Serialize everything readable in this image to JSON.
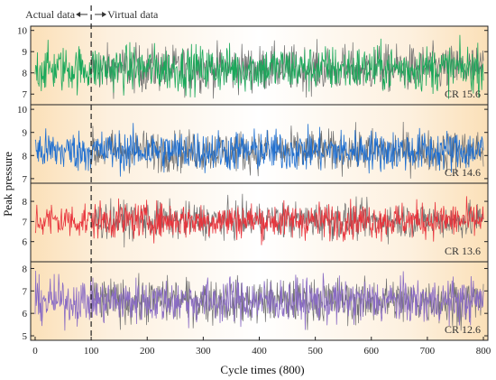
{
  "chart_data": {
    "type": "line",
    "xlabel": "Cycle times (800)",
    "ylabel": "Peak pressure",
    "xlim": [
      -8,
      808
    ],
    "xticks": [
      0,
      100,
      200,
      300,
      400,
      500,
      600,
      700,
      800
    ],
    "split_x": 100,
    "split_labels": {
      "left": "Actual data",
      "right": "Virtual data"
    },
    "panels": [
      {
        "label": "CR 15.6",
        "color": "#1aa85a",
        "ylim": [
          6.5,
          10.2
        ],
        "yticks": [
          7,
          8,
          9,
          10
        ],
        "mean": 8.2,
        "spread": 0.55
      },
      {
        "label": "CR 14.6",
        "color": "#1f6fd0",
        "ylim": [
          6.8,
          10.2
        ],
        "yticks": [
          7,
          8,
          9,
          10
        ],
        "mean": 8.2,
        "spread": 0.45
      },
      {
        "label": "CR 13.6",
        "color": "#e8343c",
        "ylim": [
          5.0,
          8.9
        ],
        "yticks": [
          6,
          7,
          8
        ],
        "mean": 7.05,
        "spread": 0.45
      },
      {
        "label": "CR 12.6",
        "color": "#8a6cc4",
        "ylim": [
          4.8,
          8.3
        ],
        "yticks": [
          5,
          6,
          7,
          8
        ],
        "mean": 6.55,
        "spread": 0.5
      }
    ]
  }
}
